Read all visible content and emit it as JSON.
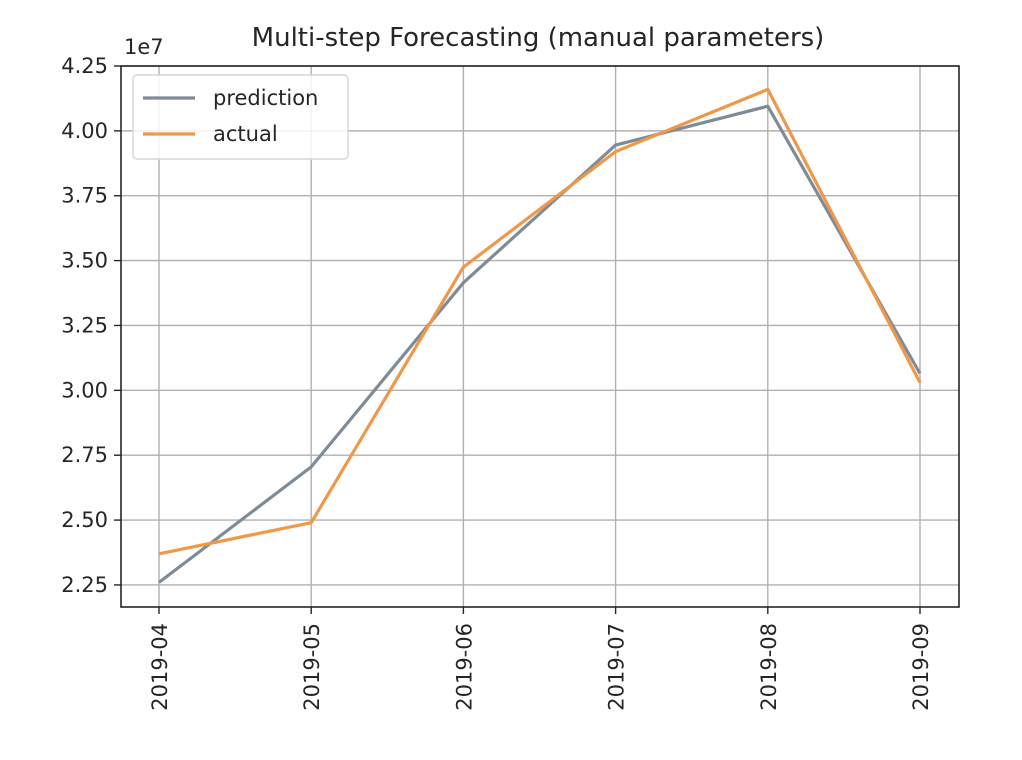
{
  "chart_data": {
    "type": "line",
    "title": "Multi-step Forecasting (manual parameters)",
    "xlabel": "",
    "ylabel": "",
    "y_offset_label": "1e7",
    "x": [
      "2019-04",
      "2019-05",
      "2019-06",
      "2019-07",
      "2019-08",
      "2019-09"
    ],
    "y_ticks": [
      "2.25",
      "2.50",
      "2.75",
      "3.00",
      "3.25",
      "3.50",
      "3.75",
      "4.00",
      "4.25"
    ],
    "ylim": [
      2.165,
      4.25
    ],
    "grid": true,
    "legend_position": "top-left",
    "series": [
      {
        "name": "prediction",
        "color": "#7f8c97",
        "values": [
          2.26,
          2.705,
          3.415,
          3.945,
          4.095,
          3.065
        ]
      },
      {
        "name": "actual",
        "color": "#f0984a",
        "values": [
          2.37,
          2.49,
          3.475,
          3.92,
          4.16,
          3.03
        ]
      }
    ]
  }
}
